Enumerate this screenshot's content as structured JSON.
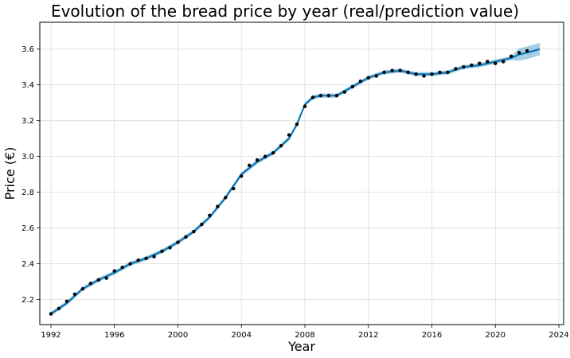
{
  "chart_data": {
    "type": "scatter",
    "title": "Evolution of the bread price by year (real/prediction value)",
    "xlabel": "Year",
    "ylabel": "Price (€)",
    "xlim": [
      1991.3,
      2024.3
    ],
    "ylim": [
      2.06,
      3.75
    ],
    "x_ticks": [
      1992,
      1996,
      2000,
      2004,
      2008,
      2012,
      2016,
      2020,
      2024
    ],
    "y_ticks": [
      2.2,
      2.4,
      2.6,
      2.8,
      3.0,
      3.2,
      3.4,
      3.6
    ],
    "grid": true,
    "colors": {
      "observed": "#000000",
      "prediction": "#0072B2",
      "interval": "#6aaed6"
    },
    "series": [
      {
        "kind": "observed",
        "x": [
          1992.0,
          1992.5,
          1993.0,
          1993.5,
          1994.0,
          1994.5,
          1995.0,
          1995.5,
          1996.0,
          1996.5,
          1997.0,
          1997.5,
          1998.0,
          1998.5,
          1999.0,
          1999.5,
          2000.0,
          2000.5,
          2001.0,
          2001.5,
          2002.0,
          2002.5,
          2003.0,
          2003.5,
          2004.0,
          2004.5,
          2005.0,
          2005.5,
          2006.0,
          2006.5,
          2007.0,
          2007.5,
          2008.0,
          2008.5,
          2009.0,
          2009.5,
          2010.0,
          2010.5,
          2011.0,
          2011.5,
          2012.0,
          2012.5,
          2013.0,
          2013.5,
          2014.0,
          2014.5,
          2015.0,
          2015.5,
          2016.0,
          2016.5,
          2017.0,
          2017.5,
          2018.0,
          2018.5,
          2019.0,
          2019.5,
          2020.0,
          2020.5,
          2021.0,
          2021.5,
          2022.0
        ],
        "y": [
          2.12,
          2.15,
          2.19,
          2.23,
          2.26,
          2.29,
          2.31,
          2.32,
          2.36,
          2.38,
          2.4,
          2.42,
          2.43,
          2.44,
          2.47,
          2.49,
          2.52,
          2.55,
          2.58,
          2.62,
          2.67,
          2.72,
          2.77,
          2.82,
          2.89,
          2.95,
          2.98,
          3.0,
          3.02,
          3.06,
          3.12,
          3.18,
          3.28,
          3.33,
          3.34,
          3.34,
          3.34,
          3.36,
          3.39,
          3.42,
          3.44,
          3.45,
          3.47,
          3.48,
          3.48,
          3.47,
          3.46,
          3.45,
          3.46,
          3.47,
          3.47,
          3.49,
          3.5,
          3.51,
          3.52,
          3.53,
          3.52,
          3.53,
          3.56,
          3.58,
          3.59
        ]
      },
      {
        "kind": "prediction",
        "x": [
          1992.0,
          1993.0,
          1994.0,
          1995.0,
          1996.0,
          1997.0,
          1998.0,
          1999.0,
          2000.0,
          2001.0,
          2002.0,
          2003.0,
          2004.0,
          2005.0,
          2006.0,
          2007.0,
          2007.5,
          2008.0,
          2008.5,
          2009.0,
          2010.0,
          2011.0,
          2012.0,
          2013.0,
          2014.0,
          2015.0,
          2016.0,
          2017.0,
          2018.0,
          2019.0,
          2020.0,
          2021.0,
          2021.5,
          2022.0,
          2022.4,
          2022.8
        ],
        "y": [
          2.12,
          2.18,
          2.26,
          2.31,
          2.35,
          2.4,
          2.43,
          2.47,
          2.52,
          2.58,
          2.66,
          2.77,
          2.9,
          2.97,
          3.02,
          3.1,
          3.18,
          3.29,
          3.33,
          3.34,
          3.34,
          3.39,
          3.44,
          3.47,
          3.48,
          3.46,
          3.46,
          3.47,
          3.5,
          3.51,
          3.53,
          3.55,
          3.57,
          3.58,
          3.59,
          3.6
        ]
      }
    ]
  }
}
